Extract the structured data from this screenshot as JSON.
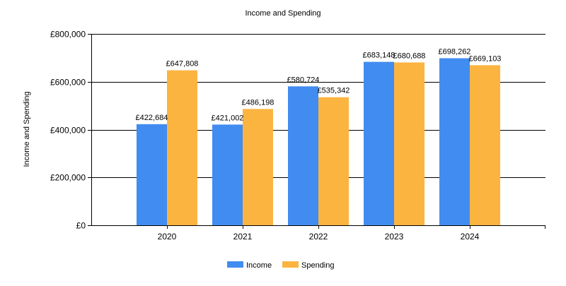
{
  "chart_data": {
    "type": "bar",
    "title": "Income and Spending",
    "xlabel": "",
    "ylabel": "Income and Spending",
    "categories": [
      "2020",
      "2021",
      "2022",
      "2023",
      "2024"
    ],
    "series": [
      {
        "name": "Income",
        "color": "#418CF0",
        "values": [
          422684,
          421002,
          580724,
          683148,
          698262
        ],
        "labels": [
          "£422,684",
          "£421,002",
          "£580,724",
          "£683,148",
          "£698,262"
        ]
      },
      {
        "name": "Spending",
        "color": "#FCB441",
        "values": [
          647808,
          486198,
          535342,
          680688,
          669103
        ],
        "labels": [
          "£647,808",
          "£486,198",
          "£535,342",
          "£680,688",
          "£669,103"
        ]
      }
    ],
    "ylim": [
      0,
      800000
    ],
    "yticks": [
      0,
      200000,
      400000,
      600000,
      800000
    ],
    "ytick_labels": [
      "£0",
      "£200,000",
      "£400,000",
      "£600,000",
      "£800,000"
    ],
    "grid": true,
    "legend_position": "bottom-center"
  }
}
